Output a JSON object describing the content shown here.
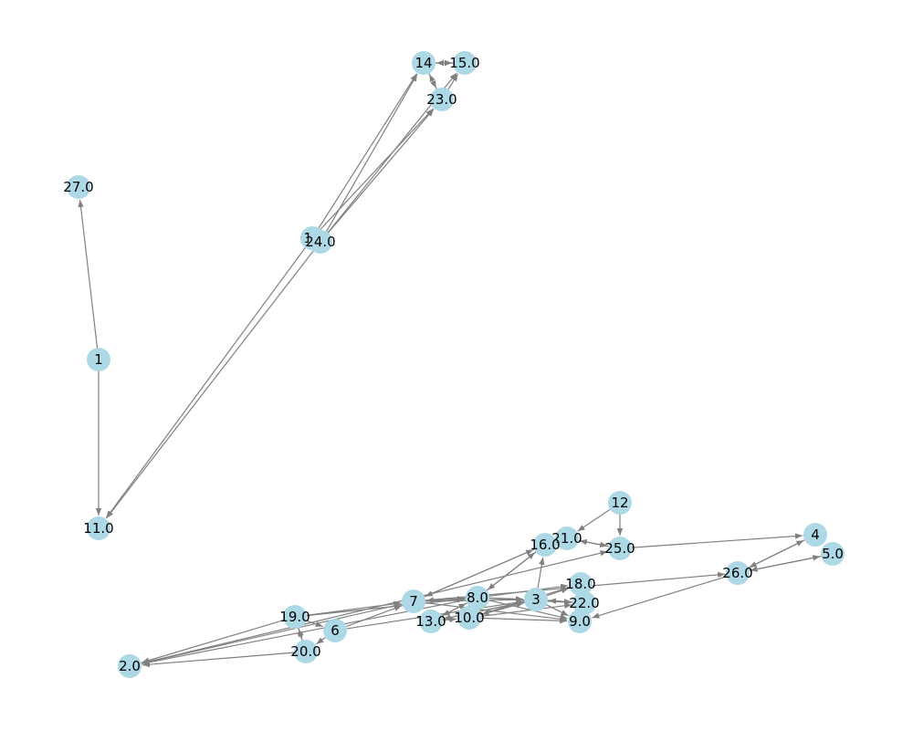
{
  "graph": {
    "directed": true,
    "node_color": "#add8e6",
    "edge_color": "#808080",
    "label_color": "#000000",
    "nodes": [
      {
        "id": "n14",
        "label": "14"
      },
      {
        "id": "n15",
        "label": "15.0"
      },
      {
        "id": "n23",
        "label": "23.0"
      },
      {
        "id": "n27",
        "label": "27.0"
      },
      {
        "id": "n17",
        "label": "17"
      },
      {
        "id": "n24",
        "label": "24.0"
      },
      {
        "id": "n1",
        "label": "1"
      },
      {
        "id": "n11",
        "label": "11.0"
      },
      {
        "id": "n12",
        "label": "12"
      },
      {
        "id": "n21",
        "label": "21.0"
      },
      {
        "id": "n25",
        "label": "25.0"
      },
      {
        "id": "n16",
        "label": "16.0"
      },
      {
        "id": "n4",
        "label": "4"
      },
      {
        "id": "n5",
        "label": "5.0"
      },
      {
        "id": "n26",
        "label": "26.0"
      },
      {
        "id": "n18",
        "label": "18.0"
      },
      {
        "id": "n7",
        "label": "7"
      },
      {
        "id": "n8",
        "label": "8.0"
      },
      {
        "id": "n3",
        "label": "3"
      },
      {
        "id": "n22",
        "label": "22.0"
      },
      {
        "id": "n19",
        "label": "19.0"
      },
      {
        "id": "n13",
        "label": "13.0"
      },
      {
        "id": "n10",
        "label": "10.0"
      },
      {
        "id": "n9",
        "label": "9.0"
      },
      {
        "id": "n6",
        "label": "6"
      },
      {
        "id": "n20",
        "label": "20.0"
      },
      {
        "id": "n2",
        "label": "2.0"
      }
    ],
    "edges": [
      [
        "n1",
        "n27"
      ],
      [
        "n1",
        "n11"
      ],
      [
        "n17",
        "n14"
      ],
      [
        "n17",
        "n23"
      ],
      [
        "n17",
        "n11"
      ],
      [
        "n24",
        "n14"
      ],
      [
        "n24",
        "n23"
      ],
      [
        "n24",
        "n15"
      ],
      [
        "n24",
        "n11"
      ],
      [
        "n14",
        "n15"
      ],
      [
        "n15",
        "n14"
      ],
      [
        "n14",
        "n23"
      ],
      [
        "n23",
        "n14"
      ],
      [
        "n23",
        "n15"
      ],
      [
        "n12",
        "n25"
      ],
      [
        "n12",
        "n21"
      ],
      [
        "n25",
        "n21"
      ],
      [
        "n21",
        "n25"
      ],
      [
        "n25",
        "n4"
      ],
      [
        "n7",
        "n16"
      ],
      [
        "n16",
        "n7"
      ],
      [
        "n8",
        "n16"
      ],
      [
        "n16",
        "n8"
      ],
      [
        "n3",
        "n16"
      ],
      [
        "n2",
        "n25"
      ],
      [
        "n26",
        "n4"
      ],
      [
        "n4",
        "n26"
      ],
      [
        "n26",
        "n5"
      ],
      [
        "n5",
        "n26"
      ],
      [
        "n26",
        "n9"
      ],
      [
        "n7",
        "n26"
      ],
      [
        "n19",
        "n7"
      ],
      [
        "n19",
        "n8"
      ],
      [
        "n19",
        "n6"
      ],
      [
        "n19",
        "n20"
      ],
      [
        "n19",
        "n2"
      ],
      [
        "n20",
        "n19"
      ],
      [
        "n6",
        "n20"
      ],
      [
        "n6",
        "n7"
      ],
      [
        "n6",
        "n3"
      ],
      [
        "n20",
        "n2"
      ],
      [
        "n7",
        "n2"
      ],
      [
        "n8",
        "n2"
      ],
      [
        "n7",
        "n8"
      ],
      [
        "n8",
        "n7"
      ],
      [
        "n8",
        "n3"
      ],
      [
        "n8",
        "n18"
      ],
      [
        "n8",
        "n22"
      ],
      [
        "n8",
        "n9"
      ],
      [
        "n8",
        "n13"
      ],
      [
        "n13",
        "n8"
      ],
      [
        "n13",
        "n3"
      ],
      [
        "n13",
        "n10"
      ],
      [
        "n10",
        "n3"
      ],
      [
        "n10",
        "n18"
      ],
      [
        "n10",
        "n22"
      ],
      [
        "n10",
        "n9"
      ],
      [
        "n10",
        "n8"
      ],
      [
        "n3",
        "n13"
      ],
      [
        "n3",
        "n10"
      ],
      [
        "n3",
        "n9"
      ],
      [
        "n3",
        "n18"
      ],
      [
        "n3",
        "n22"
      ],
      [
        "n22",
        "n3"
      ],
      [
        "n18",
        "n9"
      ],
      [
        "n9",
        "n22"
      ],
      [
        "n7",
        "n3"
      ],
      [
        "n7",
        "n9"
      ]
    ]
  }
}
